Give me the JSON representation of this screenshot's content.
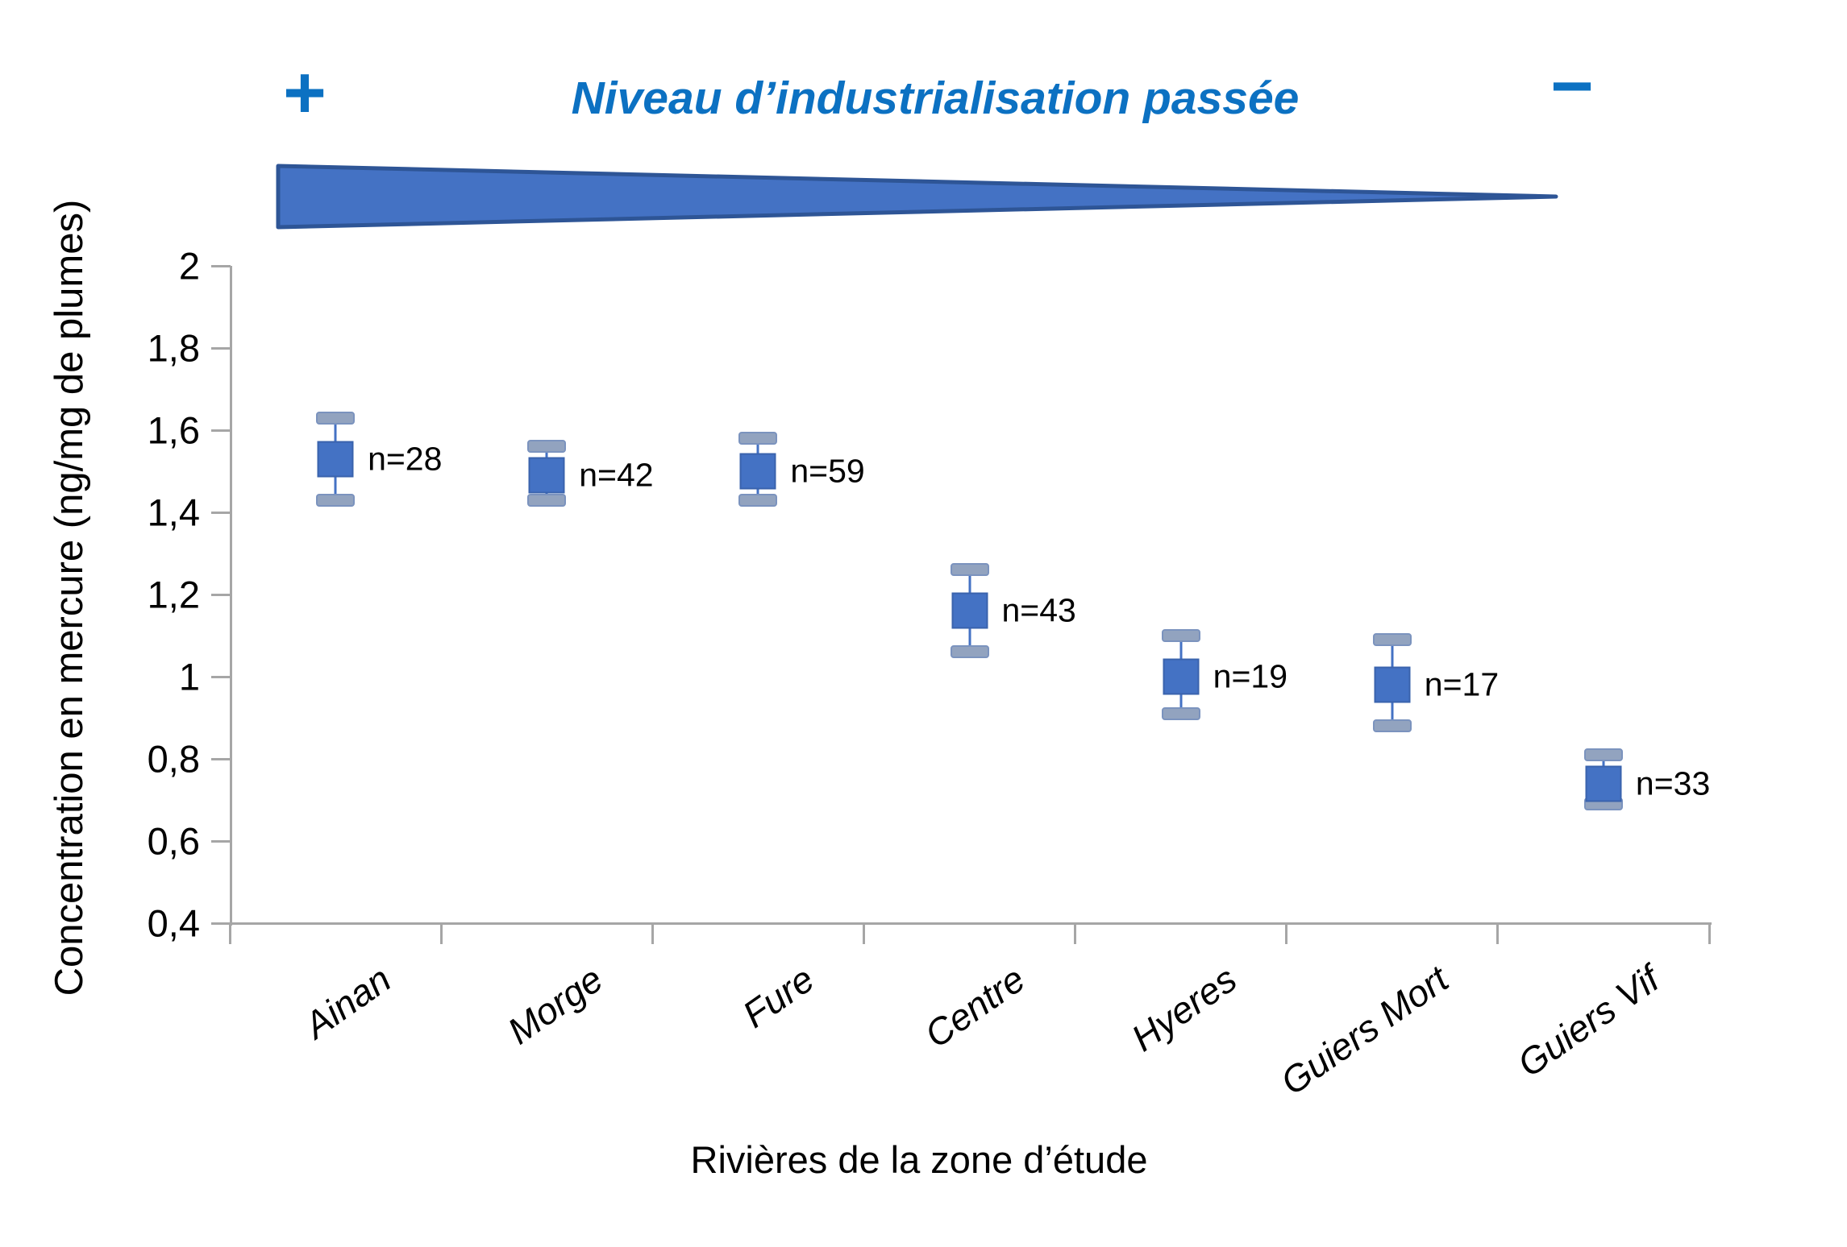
{
  "header": {
    "plus_label": "+",
    "minus_label": "−",
    "title": "Niveau d’industrialisation passée"
  },
  "chart_data": {
    "type": "scatter",
    "title": "Niveau d’industrialisation passée",
    "annotations": {
      "plus": "+",
      "minus": "−",
      "wedge_meaning": "Niveau d’industrialisation passée décroissant de gauche à droite"
    },
    "xlabel": "Rivières de la zone d’étude",
    "ylabel": "Concentration en mercure (ng/mg de plumes)",
    "ylim": [
      0.4,
      2.0
    ],
    "ytick_values": [
      0.4,
      0.6,
      0.8,
      1.0,
      1.2,
      1.4,
      1.6,
      1.8,
      2.0
    ],
    "ytick_labels": [
      "0,4",
      "0,6",
      "0,8",
      "1",
      "1,2",
      "1,4",
      "1,6",
      "1,8",
      "2"
    ],
    "grid": "off",
    "legend": "none",
    "categories": [
      "Ainan",
      "Morge",
      "Fure",
      "Centre",
      "Hyeres",
      "Guiers Mort",
      "Guiers Vif"
    ],
    "points": [
      {
        "category": "Ainan",
        "mean": 1.53,
        "upper": 1.63,
        "lower": 1.43,
        "n": 28,
        "n_label": "n=28"
      },
      {
        "category": "Morge",
        "mean": 1.49,
        "upper": 1.56,
        "lower": 1.43,
        "n": 42,
        "n_label": "n=42"
      },
      {
        "category": "Fure",
        "mean": 1.5,
        "upper": 1.58,
        "lower": 1.43,
        "n": 59,
        "n_label": "n=59"
      },
      {
        "category": "Centre",
        "mean": 1.16,
        "upper": 1.26,
        "lower": 1.06,
        "n": 43,
        "n_label": "n=43"
      },
      {
        "category": "Hyeres",
        "mean": 1.0,
        "upper": 1.1,
        "lower": 0.91,
        "n": 19,
        "n_label": "n=19"
      },
      {
        "category": "Guiers Mort",
        "mean": 0.98,
        "upper": 1.09,
        "lower": 0.88,
        "n": 17,
        "n_label": "n=17"
      },
      {
        "category": "Guiers Vif",
        "mean": 0.74,
        "upper": 0.81,
        "lower": 0.69,
        "n": 33,
        "n_label": "n=33"
      }
    ],
    "colors": {
      "marker": "#4472C4",
      "whisker_line": "#4472C4",
      "whisker_cap": "#92A3BF",
      "wedge_fill": "#4472C4",
      "wedge_border": "#2E5596",
      "title_blue": "#0C71C2",
      "axis_gray": "#A6A6A6",
      "text": "#000000"
    }
  }
}
